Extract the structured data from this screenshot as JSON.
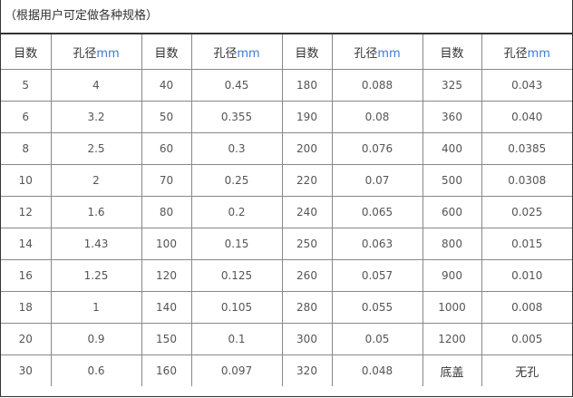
{
  "title": "（根据用户可定做各种规格）",
  "headers": {
    "mesh": "目数",
    "aperture": "孔径",
    "unit": "mm"
  },
  "rows": [
    [
      "5",
      "4",
      "40",
      "0.45",
      "180",
      "0.088",
      "325",
      "0.043"
    ],
    [
      "6",
      "3.2",
      "50",
      "0.355",
      "190",
      "0.08",
      "360",
      "0.040"
    ],
    [
      "8",
      "2.5",
      "60",
      "0.3",
      "200",
      "0.076",
      "400",
      "0.0385"
    ],
    [
      "10",
      "2",
      "70",
      "0.25",
      "220",
      "0.07",
      "500",
      "0.0308"
    ],
    [
      "12",
      "1.6",
      "80",
      "0.2",
      "240",
      "0.065",
      "600",
      "0.025"
    ],
    [
      "14",
      "1.43",
      "100",
      "0.15",
      "250",
      "0.063",
      "800",
      "0.015"
    ],
    [
      "16",
      "1.25",
      "120",
      "0.125",
      "260",
      "0.057",
      "900",
      "0.010"
    ],
    [
      "18",
      "1",
      "140",
      "0.105",
      "280",
      "0.055",
      "1000",
      "0.008"
    ],
    [
      "20",
      "0.9",
      "150",
      "0.1",
      "300",
      "0.05",
      "1200",
      "0.005"
    ],
    [
      "30",
      "0.6",
      "160",
      "0.097",
      "320",
      "0.048",
      "底盖",
      "无孔"
    ]
  ],
  "colors": {
    "unit": "#3a7bd5",
    "text": "#555555",
    "border": "#888888"
  }
}
